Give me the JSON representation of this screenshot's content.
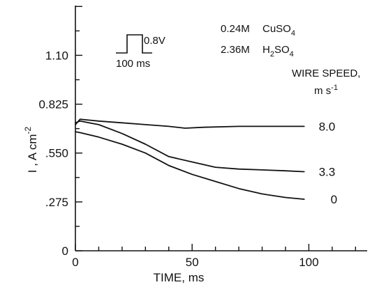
{
  "chart_data": {
    "type": "line",
    "title": "",
    "xlabel": "TIME, ms",
    "ylabel": "I , A cm",
    "ylabel_superscript": "-2",
    "xlim": [
      0,
      125
    ],
    "ylim": [
      0,
      1.38
    ],
    "x_ticks": [
      0,
      50,
      100
    ],
    "x_tick_labels": [
      "0",
      "50",
      "100"
    ],
    "y_ticks": [
      0,
      0.275,
      0.55,
      0.825,
      1.1
    ],
    "y_tick_labels": [
      "0",
      ".275",
      ".550",
      "0.825",
      "1.10"
    ],
    "legend_title": "WIRE SPEED,",
    "legend_units": "m s",
    "legend_units_superscript": "-1",
    "series": [
      {
        "name": "8.0",
        "x": [
          0,
          2,
          10,
          20,
          30,
          40,
          47,
          55,
          70,
          85,
          98
        ],
        "y": [
          0.71,
          0.74,
          0.73,
          0.72,
          0.71,
          0.7,
          0.69,
          0.695,
          0.7,
          0.7,
          0.7
        ]
      },
      {
        "name": "3.3",
        "x": [
          0,
          2,
          10,
          20,
          30,
          40,
          50,
          60,
          70,
          80,
          90,
          98
        ],
        "y": [
          0.72,
          0.73,
          0.71,
          0.66,
          0.6,
          0.53,
          0.5,
          0.47,
          0.46,
          0.455,
          0.45,
          0.445
        ]
      },
      {
        "name": "0",
        "x": [
          0,
          2,
          10,
          20,
          30,
          40,
          50,
          60,
          70,
          80,
          90,
          98
        ],
        "y": [
          0.67,
          0.665,
          0.64,
          0.6,
          0.55,
          0.48,
          0.43,
          0.39,
          0.35,
          0.32,
          0.3,
          0.29
        ]
      }
    ],
    "annotations": {
      "pulse_voltage": "0.8V",
      "pulse_duration": "100 ms",
      "conc1_value": "0.24M",
      "conc1_species": "CuSO",
      "conc1_sub": "4",
      "conc2_value": "2.36M",
      "conc2_species": "H",
      "conc2_sub_a": "2",
      "conc2_species_b": "SO",
      "conc2_sub_b": "4"
    }
  }
}
